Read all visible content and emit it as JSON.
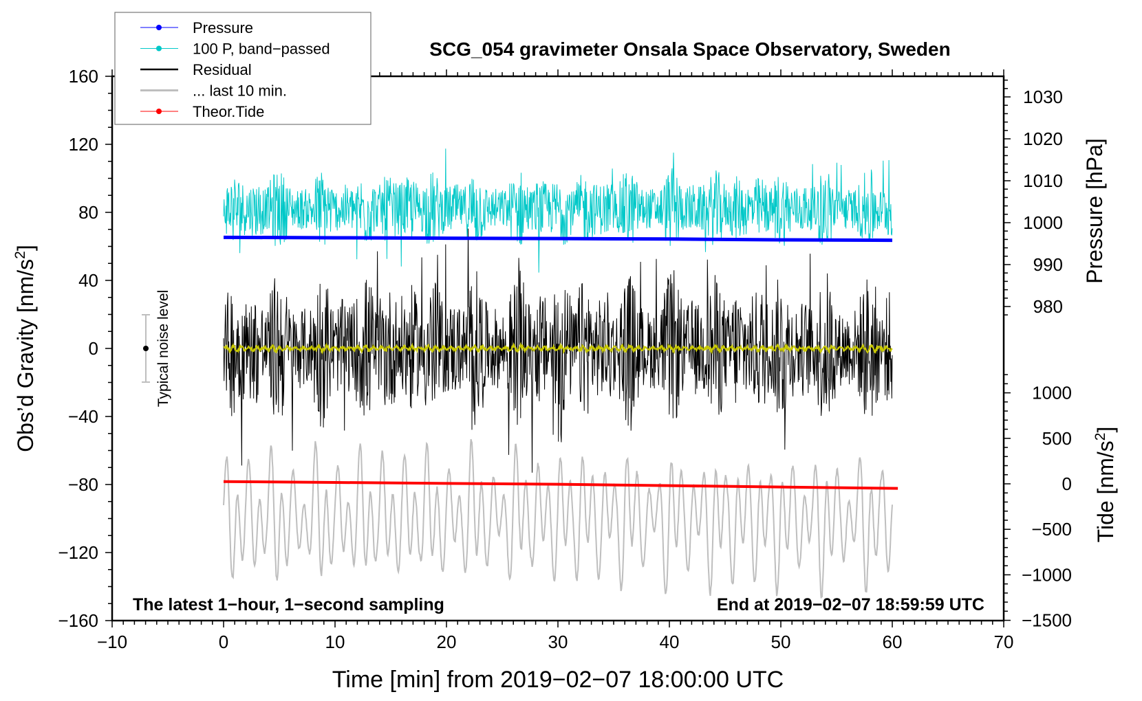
{
  "chart_data": {
    "type": "line",
    "title": "SCG_054 gravimeter Onsala Space Observatory, Sweden",
    "xlabel": "Time [min] from 2019−02−07 18:00:00 UTC",
    "ylabel_left": "Obs’d Gravity [nm/s",
    "ylabel_left_sup": "2",
    "ylabel_left_close": "]",
    "ylabel_right_pressure": "Pressure [hPa]",
    "ylabel_right_tide": "Tide [nm/s",
    "ylabel_right_tide_sup": "2",
    "ylabel_right_tide_close": "]",
    "xlim": [
      -10,
      70
    ],
    "ylim_left": [
      -160,
      160
    ],
    "ylim_pressure": [
      975,
      1035
    ],
    "ylim_tide": [
      -1500,
      1500
    ],
    "xticks": [
      "−10",
      "0",
      "10",
      "20",
      "30",
      "40",
      "50",
      "60",
      "70"
    ],
    "xtick_values": [
      -10,
      0,
      10,
      20,
      30,
      40,
      50,
      60,
      70
    ],
    "yticks_left": [
      "160",
      "120",
      "80",
      "40",
      "0",
      "−40",
      "−80",
      "−120",
      "−160"
    ],
    "ytick_left_values": [
      160,
      120,
      80,
      40,
      0,
      -40,
      -80,
      -120,
      -160
    ],
    "yticks_pressure": [
      "1030",
      "1020",
      "1010",
      "1000",
      "990",
      "980"
    ],
    "ytick_pressure_values": [
      1030,
      1020,
      1010,
      1000,
      990,
      980
    ],
    "yticks_tide": [
      "1000",
      "500",
      "0",
      "−500",
      "−1000",
      "−1500"
    ],
    "ytick_tide_values": [
      1000,
      500,
      0,
      -500,
      -1000,
      -1500
    ],
    "legend_placement": "top-left",
    "legend": [
      {
        "label": "Pressure",
        "color": "#0000ff",
        "marker": "dot"
      },
      {
        "label": "100 P, band−passed",
        "color": "#00c8c8",
        "marker": "dot"
      },
      {
        "label": "Residual",
        "color": "#000000",
        "marker": "none"
      },
      {
        "label": "... last 10 min.",
        "color": "#bebebe",
        "marker": "none"
      },
      {
        "label": "Theor.Tide",
        "color": "#ff0000",
        "marker": "dot"
      }
    ],
    "series": [
      {
        "name": "Pressure",
        "axis": "pressure",
        "color": "#0000ff",
        "x": [
          0,
          10,
          20,
          30,
          40,
          50,
          60
        ],
        "values": [
          996.5,
          996.4,
          996.3,
          996.2,
          996.1,
          995.9,
          995.8
        ]
      },
      {
        "name": "100 P, band-passed",
        "axis": "left",
        "color": "#00c8c8",
        "x_range": [
          0,
          60
        ],
        "center": 82,
        "typical_amplitude": 18,
        "max": 135,
        "min": 40
      },
      {
        "name": "Residual",
        "axis": "left",
        "color": "#000000",
        "x_range": [
          0,
          60
        ],
        "center": 0,
        "typical_amplitude": 35,
        "max": 73,
        "min": -78
      },
      {
        "name": "Residual smoothed",
        "axis": "left",
        "color": "#c8c800",
        "x_range": [
          0,
          60
        ],
        "center": 0,
        "typical_amplitude": 2
      },
      {
        "name": "... last 10 min.",
        "axis": "left",
        "color": "#bebebe",
        "x_range": [
          0,
          60
        ],
        "center": -100,
        "typical_amplitude": 30,
        "max": -35,
        "min": -173
      },
      {
        "name": "Theor.Tide",
        "axis": "tide",
        "color": "#ff0000",
        "x": [
          0,
          10,
          20,
          30,
          40,
          50,
          60.5
        ],
        "values": [
          25,
          15,
          5,
          -5,
          -20,
          -35,
          -50
        ]
      }
    ],
    "annotations": {
      "noise_label": "Typical noise level",
      "noise_range": [
        -20,
        20
      ],
      "bottom_left": "The latest 1−hour, 1−second sampling",
      "bottom_right": "End at 2019−02−07 18:59:59 UTC"
    }
  }
}
